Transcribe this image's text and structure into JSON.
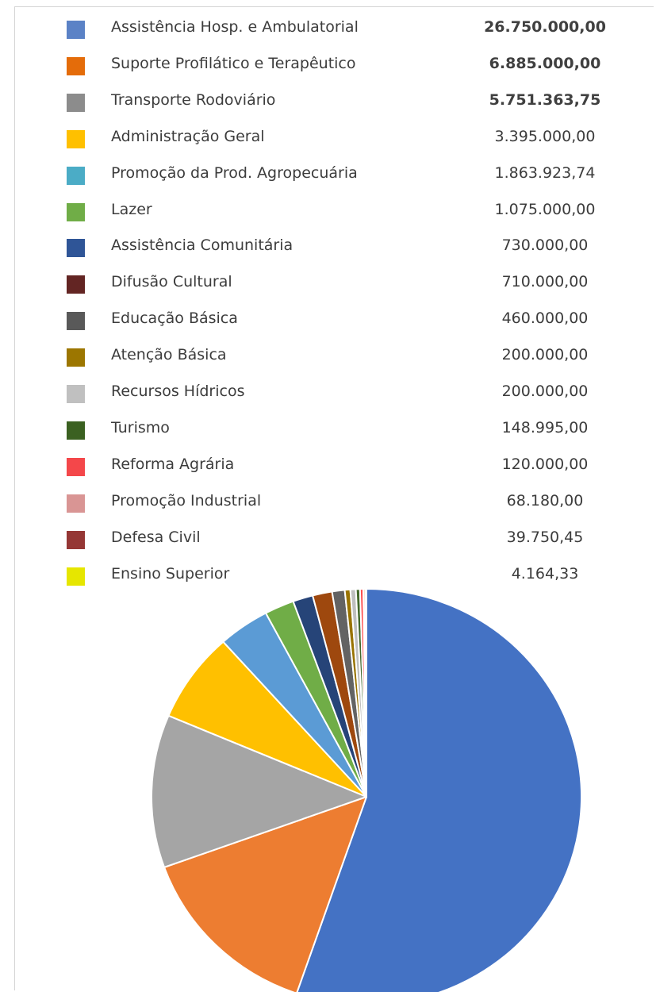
{
  "chart_data": {
    "type": "pie",
    "legend_position": "top",
    "slices": [
      {
        "label": "Assistência Hosp. e Ambulatorial",
        "display": "26.750.000,00",
        "value": 26750000.0,
        "color": "#4472C4",
        "legend_color": "#5B82C6",
        "bold": true
      },
      {
        "label": "Suporte Profilático e Terapêutico",
        "display": "6.885.000,00",
        "value": 6885000.0,
        "color": "#ED7D31",
        "legend_color": "#E46C0A",
        "bold": true
      },
      {
        "label": "Transporte Rodoviário",
        "display": "5.751.363,75",
        "value": 5751363.75,
        "color": "#A5A5A5",
        "legend_color": "#8C8C8C",
        "bold": true
      },
      {
        "label": "Administração Geral",
        "display": "3.395.000,00",
        "value": 3395000.0,
        "color": "#FFC000",
        "legend_color": "#FFC000",
        "bold": false
      },
      {
        "label": "Promoção da Prod. Agropecuária",
        "display": "1.863.923,74",
        "value": 1863923.74,
        "color": "#5B9BD5",
        "legend_color": "#4BACC6",
        "bold": false
      },
      {
        "label": "Lazer",
        "display": "1.075.000,00",
        "value": 1075000.0,
        "color": "#70AD47",
        "legend_color": "#70AD47",
        "bold": false
      },
      {
        "label": "Assistência Comunitária",
        "display": "730.000,00",
        "value": 730000.0,
        "color": "#264478",
        "legend_color": "#2F5597",
        "bold": false
      },
      {
        "label": "Difusão Cultural",
        "display": "710.000,00",
        "value": 710000.0,
        "color": "#9E480E",
        "legend_color": "#632523",
        "bold": false
      },
      {
        "label": "Educação Básica",
        "display": "460.000,00",
        "value": 460000.0,
        "color": "#636363",
        "legend_color": "#595959",
        "bold": false
      },
      {
        "label": "Atenção Básica",
        "display": "200.000,00",
        "value": 200000.0,
        "color": "#997300",
        "legend_color": "#9C7600",
        "bold": false
      },
      {
        "label": "Recursos Hídricos",
        "display": "200.000,00",
        "value": 200000.0,
        "color": "#BFBFBF",
        "legend_color": "#C0C0C0",
        "bold": false
      },
      {
        "label": "Turismo",
        "display": "148.995,00",
        "value": 148995.0,
        "color": "#43682B",
        "legend_color": "#3B6121",
        "bold": false
      },
      {
        "label": "Reforma Agrária",
        "display": "120.000,00",
        "value": 120000.0,
        "color": "#FF4D4D",
        "legend_color": "#F4474A",
        "bold": false
      },
      {
        "label": "Promoção Industrial",
        "display": "68.180,00",
        "value": 68180.0,
        "color": "#F4B183",
        "legend_color": "#D99594",
        "bold": false
      },
      {
        "label": "Defesa Civil",
        "display": "39.750,45",
        "value": 39750.45,
        "color": "#C0504D",
        "legend_color": "#953735",
        "bold": false
      },
      {
        "label": "Ensino Superior",
        "display": "4.164,33",
        "value": 4164.33,
        "color": "#FFD700",
        "legend_color": "#E6E600",
        "bold": false
      }
    ]
  }
}
